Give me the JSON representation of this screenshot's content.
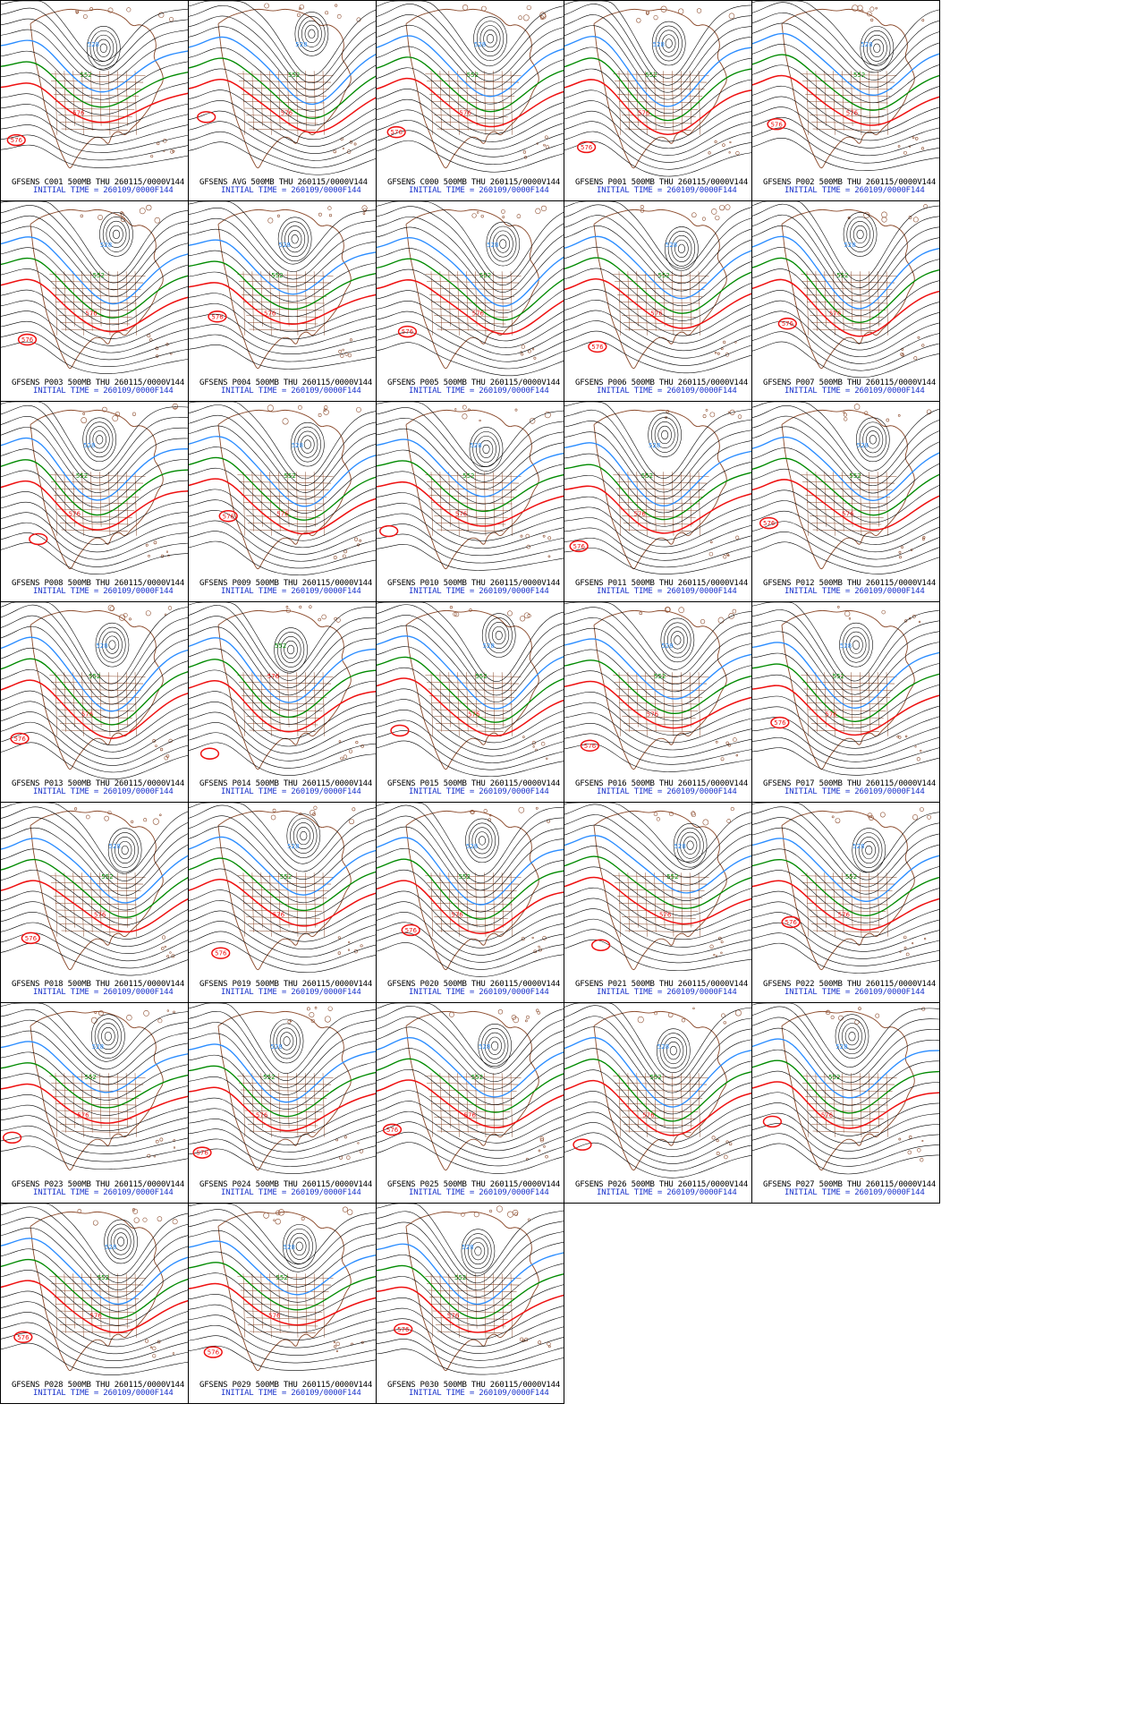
{
  "colors": {
    "contour": "#000000",
    "contour_552": "#008a00",
    "contour_528": "#2a8cff",
    "contour_576": "#ee1111",
    "coast": "#8b4a2b",
    "caption_top": "#000000",
    "caption_bottom": "#1a33cc"
  },
  "panels": [
    {
      "title": "GFSENS C001 500MB THU 260115/0000V144",
      "init": "INITIAL TIME = 260109/0000F144",
      "labels": [
        "528",
        "552",
        "576",
        "576"
      ]
    },
    {
      "title": "GFSENS AVG 500MB THU 260115/0000V144",
      "init": "INITIAL TIME = 260109/0000F144",
      "labels": [
        "528",
        "552",
        "576"
      ]
    },
    {
      "title": "GFSENS C000 500MB THU 260115/0000V144",
      "init": "INITIAL TIME = 260109/0000F144",
      "labels": [
        "528",
        "552",
        "576",
        "576"
      ]
    },
    {
      "title": "GFSENS P001 500MB THU 260115/0000V144",
      "init": "INITIAL TIME = 260109/0000F144",
      "labels": [
        "528",
        "552",
        "576",
        "576"
      ]
    },
    {
      "title": "GFSENS P002 500MB THU 260115/0000V144",
      "init": "INITIAL TIME = 260109/0000F144",
      "labels": [
        "528",
        "552",
        "576",
        "576"
      ]
    },
    {
      "title": "GFSENS P003 500MB THU 260115/0000V144",
      "init": "INITIAL TIME = 260109/0000F144",
      "labels": [
        "528",
        "552",
        "576",
        "576"
      ]
    },
    {
      "title": "GFSENS P004 500MB THU 260115/0000V144",
      "init": "INITIAL TIME = 260109/0000F144",
      "labels": [
        "528",
        "552",
        "576",
        "576"
      ]
    },
    {
      "title": "GFSENS P005 500MB THU 260115/0000V144",
      "init": "INITIAL TIME = 260109/0000F144",
      "labels": [
        "528",
        "552",
        "576",
        "576"
      ]
    },
    {
      "title": "GFSENS P006 500MB THU 260115/0000V144",
      "init": "INITIAL TIME = 260109/0000F144",
      "labels": [
        "528",
        "552",
        "576",
        "576"
      ]
    },
    {
      "title": "GFSENS P007 500MB THU 260115/0000V144",
      "init": "INITIAL TIME = 260109/0000F144",
      "labels": [
        "528",
        "552",
        "576",
        "576"
      ]
    },
    {
      "title": "GFSENS P008 500MB THU 260115/0000V144",
      "init": "INITIAL TIME = 260109/0000F144",
      "labels": [
        "528",
        "552",
        "576"
      ]
    },
    {
      "title": "GFSENS P009 500MB THU 260115/0000V144",
      "init": "INITIAL TIME = 260109/0000F144",
      "labels": [
        "528",
        "552",
        "576",
        "576"
      ]
    },
    {
      "title": "GFSENS P010 500MB THU 260115/0000V144",
      "init": "INITIAL TIME = 260109/0000F144",
      "labels": [
        "528",
        "552",
        "576"
      ]
    },
    {
      "title": "GFSENS P011 500MB THU 260115/0000V144",
      "init": "INITIAL TIME = 260109/0000F144",
      "labels": [
        "528",
        "552",
        "576",
        "576"
      ]
    },
    {
      "title": "GFSENS P012 500MB THU 260115/0000V144",
      "init": "INITIAL TIME = 260109/0000F144",
      "labels": [
        "528",
        "552",
        "576",
        "576"
      ]
    },
    {
      "title": "GFSENS P013 500MB THU 260115/0000V144",
      "init": "INITIAL TIME = 260109/0000F144",
      "labels": [
        "528",
        "552",
        "576",
        "576"
      ]
    },
    {
      "title": "GFSENS P014 500MB THU 260115/0000V144",
      "init": "INITIAL TIME = 260109/0000F144",
      "labels": [
        "552",
        "576"
      ]
    },
    {
      "title": "GFSENS P015 500MB THU 260115/0000V144",
      "init": "INITIAL TIME = 260109/0000F144",
      "labels": [
        "528",
        "552",
        "576"
      ]
    },
    {
      "title": "GFSENS P016 500MB THU 260115/0000V144",
      "init": "INITIAL TIME = 260109/0000F144",
      "labels": [
        "528",
        "552",
        "576",
        "576"
      ]
    },
    {
      "title": "GFSENS P017 500MB THU 260115/0000V144",
      "init": "INITIAL TIME = 260109/0000F144",
      "labels": [
        "528",
        "552",
        "576",
        "576"
      ]
    },
    {
      "title": "GFSENS P018 500MB THU 260115/0000V144",
      "init": "INITIAL TIME = 260109/0000F144",
      "labels": [
        "528",
        "552",
        "576",
        "576"
      ]
    },
    {
      "title": "GFSENS P019 500MB THU 260115/0000V144",
      "init": "INITIAL TIME = 260109/0000F144",
      "labels": [
        "528",
        "552",
        "576",
        "576"
      ]
    },
    {
      "title": "GFSENS P020 500MB THU 260115/0000V144",
      "init": "INITIAL TIME = 260109/0000F144",
      "labels": [
        "528",
        "552",
        "576",
        "576"
      ]
    },
    {
      "title": "GFSENS P021 500MB THU 260115/0000V144",
      "init": "INITIAL TIME = 260109/0000F144",
      "labels": [
        "528",
        "552",
        "576"
      ]
    },
    {
      "title": "GFSENS P022 500MB THU 260115/0000V144",
      "init": "INITIAL TIME = 260109/0000F144",
      "labels": [
        "528",
        "552",
        "576",
        "576"
      ]
    },
    {
      "title": "GFSENS P023 500MB THU 260115/0000V144",
      "init": "INITIAL TIME = 260109/0000F144",
      "labels": [
        "528",
        "552",
        "576"
      ]
    },
    {
      "title": "GFSENS P024 500MB THU 260115/0000V144",
      "init": "INITIAL TIME = 260109/0000F144",
      "labels": [
        "528",
        "552",
        "576",
        "576"
      ]
    },
    {
      "title": "GFSENS P025 500MB THU 260115/0000V144",
      "init": "INITIAL TIME = 260109/0000F144",
      "labels": [
        "528",
        "552",
        "576",
        "576"
      ]
    },
    {
      "title": "GFSENS P026 500MB THU 260115/0000V144",
      "init": "INITIAL TIME = 260109/0000F144",
      "labels": [
        "528",
        "552",
        "576"
      ]
    },
    {
      "title": "GFSENS P027 500MB THU 260115/0000V144",
      "init": "INITIAL TIME = 260109/0000F144",
      "labels": [
        "528",
        "552",
        "576"
      ]
    },
    {
      "title": "GFSENS P028 500MB THU 260115/0000V144",
      "init": "INITIAL TIME = 260109/0000F144",
      "labels": [
        "528",
        "552",
        "576",
        "576"
      ]
    },
    {
      "title": "GFSENS P029 500MB THU 260115/0000V144",
      "init": "INITIAL TIME = 260109/0000F144",
      "labels": [
        "528",
        "552",
        "576",
        "576"
      ]
    },
    {
      "title": "GFSENS P030 500MB THU 260115/0000V144",
      "init": "INITIAL TIME = 260109/0000F144",
      "labels": [
        "528",
        "552",
        "576",
        "576"
      ]
    }
  ]
}
